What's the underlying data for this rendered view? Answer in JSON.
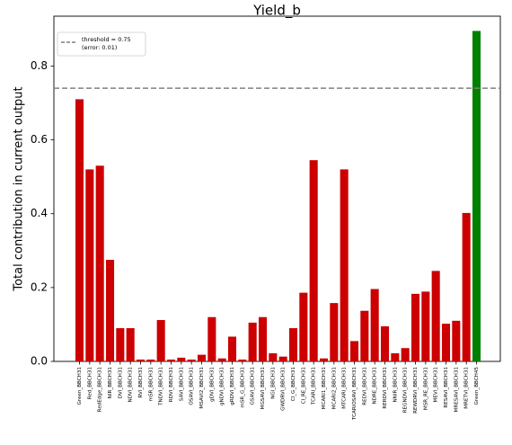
{
  "chart_data": {
    "type": "bar",
    "title": "Yield_b",
    "xlabel": "",
    "ylabel": "Total contribution in current output",
    "ylim": [
      0,
      0.935
    ],
    "yticks": [
      0.0,
      0.2,
      0.4,
      0.6,
      0.8
    ],
    "ytick_labels": [
      "0.0",
      "0.2",
      "0.4",
      "0.6",
      "0.8"
    ],
    "grid": false,
    "legend_position": "top-left",
    "threshold": {
      "value": 0.74,
      "label_line1": "threshold = 0.75",
      "label_line2": "(error: 0.01)",
      "color": "#808080"
    },
    "colors": {
      "default": "#cc0000",
      "highlight": "#008000"
    },
    "categories": [
      "Green_BBCH31",
      "Red_BBCH31",
      "RedEdge_BBCH31",
      "NIR_BBCH31",
      "DVI_BBCH31",
      "NDVI_BBCH31",
      "RVI_BBCH31",
      "mSR_BBCH31",
      "TNDVI_BBCH31",
      "RDVI_BBCH31",
      "SAVI_BBCH31",
      "OSAVI_BBCH31",
      "MSAVI2_BBCH31",
      "gDVI_BBCH31",
      "gNDVI_BBCH31",
      "gRDVI_BBCH31",
      "mSR_G_BBCH31",
      "GSAVI_BBCH31",
      "MGSAVI_BBCH31",
      "NGI_BBCH31",
      "GWDRVI_BBCH31",
      "CI_G_BBCH31",
      "CI_RE_BBCH31",
      "TCARI_BBCH31",
      "MCARI1_BBCH31",
      "MCARI2_BBCH31",
      "MTCARI_BBCH31",
      "TCARIOSAVI_BBCH31",
      "REDVI_BBCH31",
      "NDRE_BBCH31",
      "RERDVI_BBCH31",
      "NNIR_BBCH31",
      "REGNDVI_BBCH31",
      "REWDRVI_BBCH31",
      "MSR_RE_BBCH31",
      "MEVI_BBCH31",
      "RESAVI_BBCH31",
      "MRESAVI_BBCH31",
      "MRETVI_BBCH31",
      "Green_BBCH45"
    ],
    "values": [
      0.71,
      0.52,
      0.53,
      0.275,
      0.09,
      0.09,
      0.005,
      0.005,
      0.112,
      0.005,
      0.01,
      0.005,
      0.018,
      0.12,
      0.008,
      0.067,
      0.005,
      0.105,
      0.12,
      0.022,
      0.013,
      0.09,
      0.186,
      0.545,
      0.008,
      0.158,
      0.52,
      0.055,
      0.137,
      0.196,
      0.095,
      0.022,
      0.036,
      0.183,
      0.189,
      0.245,
      0.102,
      0.11,
      0.402,
      0.895
    ],
    "bar_colors": [
      "#cc0000",
      "#cc0000",
      "#cc0000",
      "#cc0000",
      "#cc0000",
      "#cc0000",
      "#cc0000",
      "#cc0000",
      "#cc0000",
      "#cc0000",
      "#cc0000",
      "#cc0000",
      "#cc0000",
      "#cc0000",
      "#cc0000",
      "#cc0000",
      "#cc0000",
      "#cc0000",
      "#cc0000",
      "#cc0000",
      "#cc0000",
      "#cc0000",
      "#cc0000",
      "#cc0000",
      "#cc0000",
      "#cc0000",
      "#cc0000",
      "#cc0000",
      "#cc0000",
      "#cc0000",
      "#cc0000",
      "#cc0000",
      "#cc0000",
      "#cc0000",
      "#cc0000",
      "#cc0000",
      "#cc0000",
      "#cc0000",
      "#cc0000",
      "#008000"
    ]
  }
}
